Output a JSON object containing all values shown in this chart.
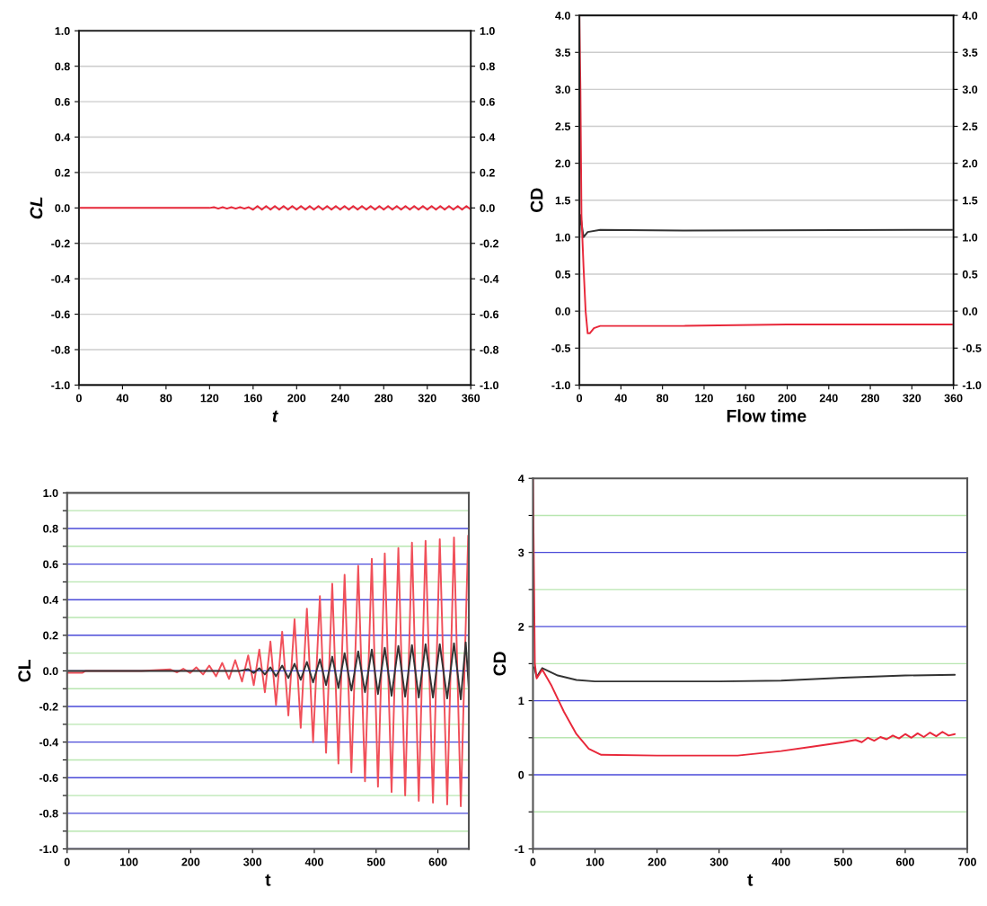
{
  "chart_data": [
    {
      "type": "line",
      "xlabel": "t",
      "ylabel": "CL",
      "xlim": [
        0,
        360
      ],
      "xticks": [
        0,
        40,
        80,
        120,
        160,
        200,
        240,
        280,
        320,
        360
      ],
      "ylim": [
        -1,
        1
      ],
      "yticks": [
        {
          "value": -1,
          "label": "-1.0"
        },
        {
          "value": -0.8,
          "label": "-0.8"
        },
        {
          "value": -0.6,
          "label": "-0.6"
        },
        {
          "value": -0.4,
          "label": "-0.4"
        },
        {
          "value": -0.2,
          "label": "-0.2"
        },
        {
          "value": 0,
          "label": "0.0"
        },
        {
          "value": 0.2,
          "label": "0.2"
        },
        {
          "value": 0.4,
          "label": "0.4"
        },
        {
          "value": 0.6,
          "label": "0.6"
        },
        {
          "value": 0.8,
          "label": "0.8"
        },
        {
          "value": 1,
          "label": "1.0"
        }
      ],
      "y2lim": [
        -1,
        1
      ],
      "y2ticks": [
        {
          "value": -1,
          "label": "-1.0"
        },
        {
          "value": -0.8,
          "label": "-0.8"
        },
        {
          "value": -0.6,
          "label": "-0.6"
        },
        {
          "value": -0.4,
          "label": "-0.4"
        },
        {
          "value": -0.2,
          "label": "-0.2"
        },
        {
          "value": 0,
          "label": "0.0"
        },
        {
          "value": 0.2,
          "label": "0.2"
        },
        {
          "value": 0.4,
          "label": "0.4"
        },
        {
          "value": 0.6,
          "label": "0.6"
        },
        {
          "value": 0.8,
          "label": "0.8"
        },
        {
          "value": 1,
          "label": "1.0"
        }
      ],
      "grid": "y",
      "series": [
        {
          "color": "#e8283a",
          "x": [
            0,
            120,
            124,
            128,
            132,
            136,
            140,
            144,
            148,
            152,
            156,
            160,
            164,
            168,
            172,
            176,
            180,
            184,
            188,
            192,
            196,
            200,
            204,
            208,
            212,
            216,
            220,
            224,
            228,
            232,
            236,
            240,
            244,
            248,
            252,
            256,
            260,
            264,
            268,
            272,
            276,
            280,
            284,
            288,
            292,
            296,
            300,
            304,
            308,
            312,
            316,
            320,
            324,
            328,
            332,
            336,
            340,
            344,
            348,
            352,
            356,
            360
          ],
          "values": [
            0,
            0,
            0.004,
            -0.004,
            0.004,
            -0.004,
            0.004,
            -0.004,
            0.004,
            -0.004,
            0.004,
            -0.01,
            0.01,
            -0.01,
            0.01,
            -0.01,
            0.01,
            -0.01,
            0.01,
            -0.01,
            0.01,
            -0.01,
            0.01,
            -0.01,
            0.01,
            -0.01,
            0.01,
            -0.01,
            0.01,
            -0.01,
            0.01,
            -0.01,
            0.01,
            -0.01,
            0.01,
            -0.01,
            0.01,
            -0.01,
            0.01,
            -0.01,
            0.01,
            -0.01,
            0.01,
            -0.01,
            0.01,
            -0.01,
            0.01,
            -0.01,
            0.01,
            -0.01,
            0.01,
            -0.01,
            0.01,
            -0.01,
            0.01,
            -0.01,
            0.01,
            -0.01,
            0.01,
            -0.01,
            0.01,
            -0.01
          ]
        }
      ]
    },
    {
      "type": "line",
      "xlabel": "Flow time",
      "ylabel": "CD",
      "xlim": [
        0,
        360
      ],
      "xticks": [
        0,
        40,
        80,
        120,
        160,
        200,
        240,
        280,
        320,
        360
      ],
      "ylim": [
        -1,
        4
      ],
      "yticks": [
        {
          "value": -1,
          "label": "-1.0"
        },
        {
          "value": -0.5,
          "label": "-0.5"
        },
        {
          "value": 0,
          "label": "0.0"
        },
        {
          "value": 0.5,
          "label": "0.5"
        },
        {
          "value": 1,
          "label": "1.0"
        },
        {
          "value": 1.5,
          "label": "1.5"
        },
        {
          "value": 2,
          "label": "2.0"
        },
        {
          "value": 2.5,
          "label": "2.5"
        },
        {
          "value": 3,
          "label": "3.0"
        },
        {
          "value": 3.5,
          "label": "3.5"
        },
        {
          "value": 4,
          "label": "4.0"
        }
      ],
      "y2lim": [
        -1,
        4
      ],
      "y2ticks": [
        {
          "value": -1,
          "label": "-1.0"
        },
        {
          "value": -0.5,
          "label": "-0.5"
        },
        {
          "value": 0,
          "label": "0.0"
        },
        {
          "value": 0.5,
          "label": "0.5"
        },
        {
          "value": 1,
          "label": "1.0"
        },
        {
          "value": 1.5,
          "label": "1.5"
        },
        {
          "value": 2,
          "label": "2.0"
        },
        {
          "value": 2.5,
          "label": "2.5"
        },
        {
          "value": 3,
          "label": "3.0"
        },
        {
          "value": 3.5,
          "label": "3.5"
        },
        {
          "value": 4,
          "label": "4.0"
        }
      ],
      "grid": "y",
      "series": [
        {
          "color": "#333333",
          "x": [
            0,
            1,
            2,
            4,
            8,
            20,
            100,
            360
          ],
          "values": [
            1.0,
            1.3,
            1.2,
            1.0,
            1.07,
            1.1,
            1.09,
            1.1
          ]
        },
        {
          "color": "#e8283a",
          "x": [
            0,
            1,
            2,
            4,
            6,
            8,
            10,
            14,
            20,
            100,
            200,
            360
          ],
          "values": [
            4.0,
            3.0,
            1.3,
            0.6,
            0.0,
            -0.3,
            -0.3,
            -0.23,
            -0.2,
            -0.2,
            -0.18,
            -0.18
          ]
        }
      ]
    },
    {
      "type": "line",
      "xlabel": "t",
      "ylabel": "CL",
      "xlim": [
        0,
        650
      ],
      "xticks": [
        0,
        100,
        200,
        300,
        400,
        500,
        600
      ],
      "ylim": [
        -1,
        1
      ],
      "yticks": [
        {
          "value": -1,
          "label": "-1.0"
        },
        {
          "value": -0.9,
          "label": null
        },
        {
          "value": -0.8,
          "label": "-0.8"
        },
        {
          "value": -0.7,
          "label": null
        },
        {
          "value": -0.6,
          "label": "-0.6"
        },
        {
          "value": -0.5,
          "label": null
        },
        {
          "value": -0.4,
          "label": "-0.4"
        },
        {
          "value": -0.3,
          "label": null
        },
        {
          "value": -0.2,
          "label": "-0.2"
        },
        {
          "value": -0.1,
          "label": null
        },
        {
          "value": 0,
          "label": "0.0"
        },
        {
          "value": 0.1,
          "label": null
        },
        {
          "value": 0.2,
          "label": "0.2"
        },
        {
          "value": 0.3,
          "label": null
        },
        {
          "value": 0.4,
          "label": "0.4"
        },
        {
          "value": 0.5,
          "label": null
        },
        {
          "value": 0.6,
          "label": "0.6"
        },
        {
          "value": 0.7,
          "label": null
        },
        {
          "value": 0.8,
          "label": "0.8"
        },
        {
          "value": 0.9,
          "label": null
        },
        {
          "value": 1,
          "label": "1.0"
        }
      ],
      "grid": "y",
      "series": [
        {
          "color": "#f0505a",
          "x": [
            0,
            25,
            30,
            120,
            167,
            178,
            188,
            199,
            209,
            220,
            230,
            241,
            251,
            262,
            272,
            283,
            293,
            302,
            311,
            320,
            329,
            338,
            348,
            358,
            368,
            378,
            388,
            398,
            409,
            419,
            429,
            439,
            449,
            460,
            471,
            482,
            493,
            503,
            514,
            525,
            536,
            547,
            558,
            569,
            580,
            592,
            603,
            615,
            626,
            637,
            649,
            650
          ],
          "values": [
            -0.01,
            -0.01,
            0,
            0,
            0.008,
            -0.008,
            0.012,
            -0.012,
            0.02,
            -0.02,
            0.03,
            -0.03,
            0.045,
            -0.045,
            0.06,
            -0.06,
            0.087,
            -0.08,
            0.12,
            -0.12,
            0.165,
            -0.19,
            0.22,
            -0.25,
            0.29,
            -0.32,
            0.35,
            -0.4,
            0.42,
            -0.46,
            0.49,
            -0.52,
            0.54,
            -0.57,
            0.59,
            -0.62,
            0.63,
            -0.65,
            0.66,
            -0.68,
            0.69,
            -0.7,
            0.72,
            -0.73,
            0.73,
            -0.74,
            0.74,
            -0.75,
            0.75,
            -0.76,
            0.76,
            0.7
          ]
        },
        {
          "color": "#333333",
          "x": [
            0,
            280,
            293,
            302,
            311,
            320,
            329,
            338,
            348,
            358,
            368,
            378,
            388,
            398,
            409,
            419,
            429,
            439,
            449,
            460,
            471,
            482,
            493,
            503,
            514,
            525,
            536,
            547,
            558,
            569,
            580,
            592,
            603,
            615,
            626,
            637,
            645,
            650
          ],
          "values": [
            0,
            0,
            0.01,
            -0.012,
            0.015,
            -0.02,
            0.02,
            -0.03,
            0.03,
            -0.04,
            0.04,
            -0.05,
            0.05,
            -0.065,
            0.065,
            -0.08,
            0.08,
            -0.095,
            0.1,
            -0.11,
            0.11,
            -0.12,
            0.12,
            -0.13,
            0.13,
            -0.14,
            0.14,
            -0.145,
            0.145,
            -0.15,
            0.15,
            -0.15,
            0.15,
            -0.155,
            0.155,
            -0.16,
            0.16,
            -0.1
          ]
        }
      ]
    },
    {
      "type": "line",
      "xlabel": "t",
      "ylabel": "CD",
      "xlim": [
        0,
        700
      ],
      "xticks": [
        0,
        100,
        200,
        300,
        400,
        500,
        600,
        700
      ],
      "ylim": [
        -1,
        4
      ],
      "yticks": [
        {
          "value": -1,
          "label": "-1"
        },
        {
          "value": -0.5,
          "label": null
        },
        {
          "value": 0,
          "label": "0"
        },
        {
          "value": 0.5,
          "label": null
        },
        {
          "value": 1,
          "label": "1"
        },
        {
          "value": 1.5,
          "label": null
        },
        {
          "value": 2,
          "label": "2"
        },
        {
          "value": 2.5,
          "label": null
        },
        {
          "value": 3,
          "label": "3"
        },
        {
          "value": 3.5,
          "label": null
        },
        {
          "value": 4,
          "label": "4"
        }
      ],
      "grid": "y",
      "series": [
        {
          "color": "#333333",
          "x": [
            2,
            6,
            15,
            40,
            70,
            100,
            300,
            400,
            500,
            600,
            680
          ],
          "values": [
            1.45,
            1.32,
            1.44,
            1.34,
            1.28,
            1.26,
            1.26,
            1.27,
            1.31,
            1.34,
            1.35
          ]
        },
        {
          "color": "#e8283a",
          "x": [
            0,
            3,
            6,
            15,
            30,
            50,
            70,
            90,
            110,
            200,
            330,
            400,
            450,
            500,
            520,
            530,
            540,
            550,
            560,
            570,
            580,
            590,
            600,
            610,
            620,
            630,
            640,
            650,
            660,
            670,
            680
          ],
          "values": [
            4.0,
            1.5,
            1.3,
            1.42,
            1.2,
            0.85,
            0.55,
            0.35,
            0.27,
            0.26,
            0.26,
            0.32,
            0.38,
            0.44,
            0.47,
            0.44,
            0.5,
            0.46,
            0.51,
            0.48,
            0.53,
            0.49,
            0.55,
            0.5,
            0.56,
            0.51,
            0.57,
            0.52,
            0.58,
            0.53,
            0.55
          ]
        }
      ]
    }
  ]
}
